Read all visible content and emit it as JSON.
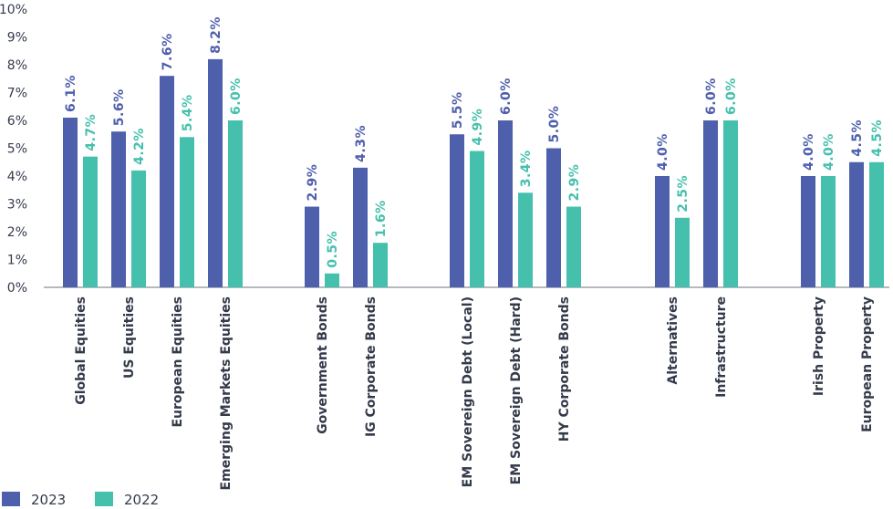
{
  "chart_data": {
    "type": "bar",
    "title": "",
    "xlabel": "",
    "ylabel": "",
    "ylim": [
      0,
      10
    ],
    "yticks": [
      "0%",
      "1%",
      "2%",
      "3%",
      "4%",
      "5%",
      "6%",
      "7%",
      "8%",
      "9%",
      "10%"
    ],
    "grid": false,
    "legend_position": "bottom-left",
    "categories": [
      "Global Equities",
      "US Equities",
      "European Equities",
      "Emerging Markets Equities",
      "Government Bonds",
      "IG Corporate Bonds",
      "EM Sovereign Debt (Local)",
      "EM Sovereign Debt (Hard)",
      "HY Corporate Bonds",
      "Alternatives",
      "Infrastructure",
      "Irish Property",
      "European Property"
    ],
    "groups": [
      4,
      2,
      3,
      2,
      2
    ],
    "series": [
      {
        "name": "2023",
        "color": "#4e5fac",
        "values": [
          6.1,
          5.6,
          7.6,
          8.2,
          2.9,
          4.3,
          5.5,
          6.0,
          5.0,
          4.0,
          6.0,
          4.0,
          4.5
        ],
        "labels": [
          "6.1%",
          "5.6%",
          "7.6%",
          "8.2%",
          "2.9%",
          "4.3%",
          "5.5%",
          "6.0%",
          "5.0%",
          "4.0%",
          "6.0%",
          "4.0%",
          "4.5%"
        ]
      },
      {
        "name": "2022",
        "color": "#45c0ad",
        "values": [
          4.7,
          4.2,
          5.4,
          6.0,
          0.5,
          1.6,
          4.9,
          3.4,
          2.9,
          2.5,
          6.0,
          4.0,
          4.5
        ],
        "labels": [
          "4.7%",
          "4.2%",
          "5.4%",
          "6.0%",
          "0.5%",
          "1.6%",
          "4.9%",
          "3.4%",
          "2.9%",
          "2.5%",
          "6.0%",
          "4.0%",
          "4.5%"
        ]
      }
    ]
  }
}
